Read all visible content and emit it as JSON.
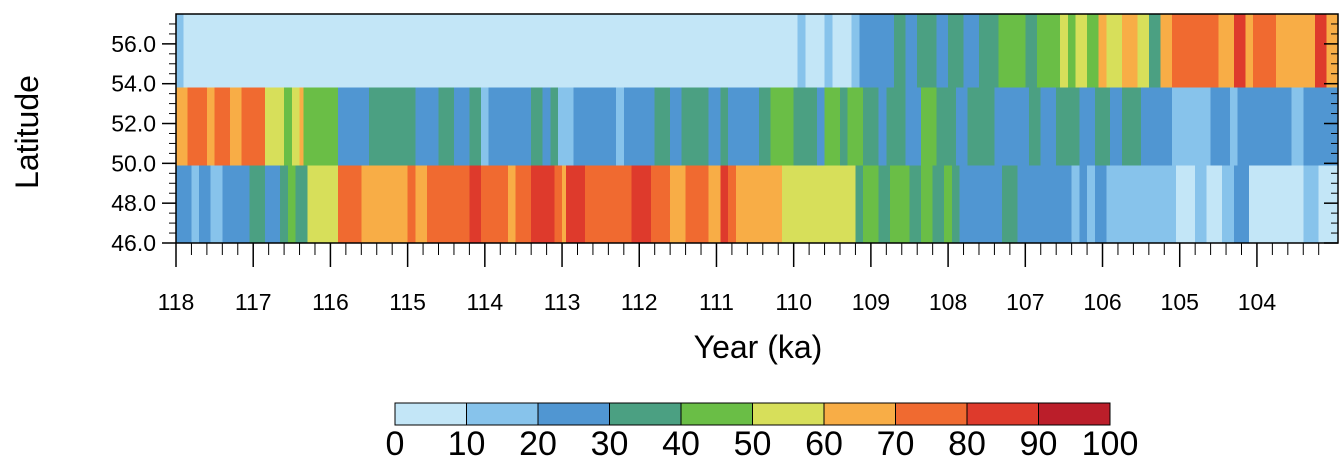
{
  "chart_data": {
    "type": "heatmap",
    "title": "",
    "xlabel": "Year (ka)",
    "ylabel": "Latitude",
    "x_reversed": true,
    "xlim": [
      118,
      102.95
    ],
    "ylim": [
      46.0,
      57.5
    ],
    "x_ticks": [
      118,
      117,
      116,
      115,
      114,
      113,
      112,
      111,
      110,
      109,
      108,
      107,
      106,
      105,
      104
    ],
    "x_tick_labels": [
      "118",
      "117",
      "116",
      "115",
      "114",
      "113",
      "112",
      "111",
      "110",
      "109",
      "108",
      "107",
      "106",
      "105",
      "104"
    ],
    "y_ticks": [
      46.0,
      48.0,
      50.0,
      52.0,
      54.0,
      56.0
    ],
    "y_tick_labels": [
      "46.0",
      "48.0",
      "50.0",
      "52.0",
      "54.0",
      "56.0"
    ],
    "row_bands": [
      {
        "lat_min": 53.8,
        "lat_max": 57.5
      },
      {
        "lat_min": 49.9,
        "lat_max": 53.8
      },
      {
        "lat_min": 46.0,
        "lat_max": 49.9
      }
    ],
    "rows": [
      [
        [
          118,
          117.9,
          1
        ],
        [
          117.9,
          109.95,
          0
        ],
        [
          109.95,
          109.85,
          1
        ],
        [
          109.85,
          109.6,
          0
        ],
        [
          109.6,
          109.5,
          1
        ],
        [
          109.5,
          109.25,
          0
        ],
        [
          109.25,
          109.15,
          1
        ],
        [
          109.15,
          108.7,
          2
        ],
        [
          108.7,
          108.55,
          3
        ],
        [
          108.55,
          108.4,
          2
        ],
        [
          108.4,
          108.15,
          3
        ],
        [
          108.15,
          108.0,
          2
        ],
        [
          108.0,
          107.8,
          3
        ],
        [
          107.8,
          107.6,
          2
        ],
        [
          107.6,
          107.35,
          3
        ],
        [
          107.35,
          107.0,
          4
        ],
        [
          107.0,
          106.85,
          3
        ],
        [
          106.85,
          106.55,
          4
        ],
        [
          106.55,
          106.45,
          5
        ],
        [
          106.45,
          106.35,
          4
        ],
        [
          106.35,
          106.2,
          5
        ],
        [
          106.2,
          106.05,
          4
        ],
        [
          106.05,
          105.95,
          6
        ],
        [
          105.95,
          105.75,
          5
        ],
        [
          105.75,
          105.55,
          6
        ],
        [
          105.55,
          105.4,
          5
        ],
        [
          105.4,
          105.25,
          3
        ],
        [
          105.25,
          105.1,
          6
        ],
        [
          105.1,
          104.85,
          7
        ],
        [
          104.85,
          104.5,
          7
        ],
        [
          104.5,
          104.3,
          6
        ],
        [
          104.3,
          104.15,
          8
        ],
        [
          104.15,
          104.05,
          6
        ],
        [
          104.05,
          103.75,
          7
        ],
        [
          103.75,
          103.25,
          6
        ],
        [
          103.25,
          103.1,
          8
        ],
        [
          103.1,
          102.95,
          6
        ]
      ],
      [
        [
          118,
          117.85,
          6
        ],
        [
          117.85,
          117.6,
          7
        ],
        [
          117.6,
          117.5,
          6
        ],
        [
          117.5,
          117.3,
          7
        ],
        [
          117.3,
          117.15,
          6
        ],
        [
          117.15,
          116.85,
          7
        ],
        [
          116.85,
          116.6,
          5
        ],
        [
          116.6,
          116.5,
          4
        ],
        [
          116.5,
          116.4,
          5
        ],
        [
          116.4,
          116.35,
          6
        ],
        [
          116.35,
          116.2,
          4
        ],
        [
          116.2,
          115.9,
          4
        ],
        [
          115.9,
          115.5,
          2
        ],
        [
          115.5,
          114.9,
          3
        ],
        [
          114.9,
          114.6,
          2
        ],
        [
          114.6,
          114.4,
          3
        ],
        [
          114.4,
          114.2,
          2
        ],
        [
          114.2,
          114.05,
          3
        ],
        [
          114.05,
          113.95,
          1
        ],
        [
          113.95,
          113.4,
          2
        ],
        [
          113.4,
          113.25,
          3
        ],
        [
          113.25,
          113.15,
          2
        ],
        [
          113.15,
          113.05,
          3
        ],
        [
          113.05,
          112.85,
          1
        ],
        [
          112.85,
          112.3,
          2
        ],
        [
          112.3,
          112.2,
          1
        ],
        [
          112.2,
          112.0,
          2
        ],
        [
          112.0,
          111.8,
          2
        ],
        [
          111.8,
          111.6,
          3
        ],
        [
          111.6,
          111.45,
          2
        ],
        [
          111.45,
          111.1,
          3
        ],
        [
          111.1,
          110.95,
          2
        ],
        [
          110.95,
          110.85,
          3
        ],
        [
          110.85,
          110.45,
          2
        ],
        [
          110.45,
          110.3,
          3
        ],
        [
          110.3,
          110.0,
          4
        ],
        [
          110.0,
          109.7,
          3
        ],
        [
          109.7,
          109.6,
          2
        ],
        [
          109.6,
          109.4,
          4
        ],
        [
          109.4,
          109.3,
          3
        ],
        [
          109.3,
          109.1,
          4
        ],
        [
          109.1,
          108.9,
          3
        ],
        [
          108.9,
          108.8,
          2
        ],
        [
          108.8,
          108.55,
          3
        ],
        [
          108.55,
          108.35,
          2
        ],
        [
          108.35,
          108.15,
          4
        ],
        [
          108.15,
          107.9,
          3
        ],
        [
          107.9,
          107.75,
          2
        ],
        [
          107.75,
          107.4,
          3
        ],
        [
          107.4,
          107.15,
          2
        ],
        [
          107.15,
          106.95,
          2
        ],
        [
          106.95,
          106.8,
          3
        ],
        [
          106.8,
          106.6,
          2
        ],
        [
          106.6,
          106.3,
          3
        ],
        [
          106.3,
          106.1,
          2
        ],
        [
          106.1,
          105.9,
          3
        ],
        [
          105.9,
          105.75,
          2
        ],
        [
          105.75,
          105.5,
          3
        ],
        [
          105.5,
          105.1,
          2
        ],
        [
          105.1,
          104.6,
          1
        ],
        [
          104.6,
          104.35,
          2
        ],
        [
          104.35,
          104.25,
          1
        ],
        [
          104.25,
          103.55,
          2
        ],
        [
          103.55,
          103.4,
          1
        ],
        [
          103.4,
          103.15,
          2
        ],
        [
          103.15,
          102.95,
          2
        ]
      ],
      [
        [
          118,
          117.8,
          2
        ],
        [
          117.8,
          117.7,
          1
        ],
        [
          117.7,
          117.55,
          2
        ],
        [
          117.55,
          117.4,
          1
        ],
        [
          117.4,
          117.05,
          2
        ],
        [
          117.05,
          116.85,
          3
        ],
        [
          116.85,
          116.65,
          2
        ],
        [
          116.65,
          116.55,
          3
        ],
        [
          116.55,
          116.45,
          4
        ],
        [
          116.45,
          116.3,
          3
        ],
        [
          116.3,
          115.9,
          5
        ],
        [
          115.9,
          115.6,
          7
        ],
        [
          115.6,
          115.5,
          6
        ],
        [
          115.5,
          115.0,
          6
        ],
        [
          115.0,
          114.9,
          7
        ],
        [
          114.9,
          114.75,
          6
        ],
        [
          114.75,
          114.6,
          7
        ],
        [
          114.6,
          114.2,
          7
        ],
        [
          114.2,
          114.05,
          8
        ],
        [
          114.05,
          113.7,
          7
        ],
        [
          113.7,
          113.6,
          6
        ],
        [
          113.6,
          113.4,
          7
        ],
        [
          113.4,
          113.1,
          8
        ],
        [
          113.1,
          113.0,
          7
        ],
        [
          113.0,
          112.95,
          6
        ],
        [
          112.95,
          112.7,
          8
        ],
        [
          112.7,
          112.1,
          7
        ],
        [
          112.1,
          111.85,
          8
        ],
        [
          111.85,
          111.6,
          7
        ],
        [
          111.6,
          111.4,
          6
        ],
        [
          111.4,
          111.1,
          7
        ],
        [
          111.1,
          110.95,
          6
        ],
        [
          110.95,
          110.85,
          8
        ],
        [
          110.85,
          110.75,
          7
        ],
        [
          110.75,
          110.4,
          6
        ],
        [
          110.4,
          110.15,
          6
        ],
        [
          110.15,
          109.85,
          5
        ],
        [
          109.85,
          109.2,
          5
        ],
        [
          109.2,
          109.1,
          3
        ],
        [
          109.1,
          108.9,
          4
        ],
        [
          108.9,
          108.75,
          3
        ],
        [
          108.75,
          108.5,
          4
        ],
        [
          108.5,
          108.35,
          3
        ],
        [
          108.35,
          108.2,
          4
        ],
        [
          108.2,
          108.05,
          3
        ],
        [
          108.05,
          107.95,
          4
        ],
        [
          107.95,
          107.85,
          3
        ],
        [
          107.85,
          107.3,
          2
        ],
        [
          107.3,
          107.1,
          3
        ],
        [
          107.1,
          106.85,
          2
        ],
        [
          106.85,
          106.4,
          2
        ],
        [
          106.4,
          106.3,
          1
        ],
        [
          106.3,
          106.2,
          2
        ],
        [
          106.2,
          106.1,
          1
        ],
        [
          106.1,
          106.0,
          2
        ],
        [
          106.0,
          105.95,
          2
        ],
        [
          105.95,
          105.3,
          1
        ],
        [
          105.3,
          105.05,
          1
        ],
        [
          105.05,
          104.8,
          0
        ],
        [
          104.8,
          104.65,
          1
        ],
        [
          104.65,
          104.45,
          0
        ],
        [
          104.45,
          104.3,
          1
        ],
        [
          104.3,
          104.1,
          2
        ],
        [
          104.1,
          103.4,
          0
        ],
        [
          103.4,
          103.2,
          1
        ],
        [
          103.2,
          102.95,
          0
        ]
      ]
    ],
    "colorbar": {
      "colors": [
        "#c3e6f7",
        "#87c3eb",
        "#5096d2",
        "#4ba082",
        "#6abe46",
        "#d7df5a",
        "#f8ad46",
        "#f06a30",
        "#de3a2c",
        "#bb1e2a"
      ],
      "labels": [
        "0",
        "10",
        "20",
        "30",
        "40",
        "50",
        "60",
        "70",
        "80",
        "90",
        "100"
      ]
    }
  }
}
